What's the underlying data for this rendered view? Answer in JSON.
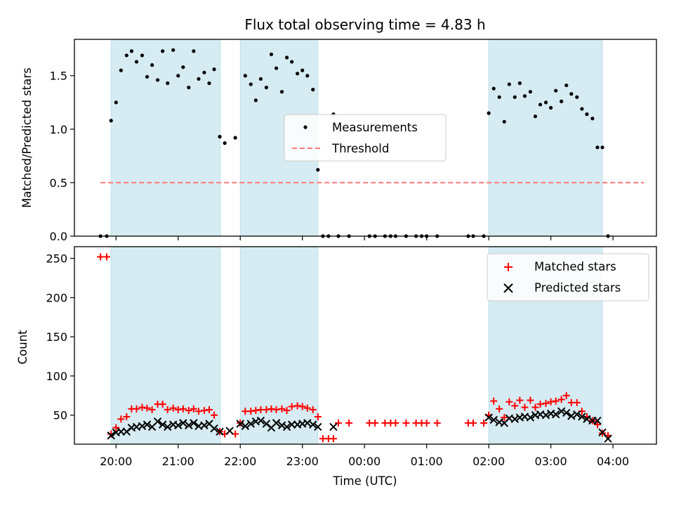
{
  "chart_data": [
    {
      "type": "scatter",
      "title": "Flux total observing time = 4.83 h",
      "xlabel": "",
      "ylabel": "Matched/Predicted stars",
      "xlim": [
        -0.67,
        8.7
      ],
      "ylim": [
        0,
        1.84
      ],
      "yticks": [
        0.0,
        0.5,
        1.0,
        1.5
      ],
      "ytick_labels": [
        "0.0",
        "0.5",
        "1.0",
        "1.5"
      ],
      "shaded_intervals": [
        [
          -0.08,
          1.68
        ],
        [
          2.0,
          3.25
        ],
        [
          6.0,
          7.83
        ]
      ],
      "threshold": {
        "name": "Threshold",
        "y": 0.5,
        "x_range": [
          -0.25,
          8.5
        ],
        "color": "#ff7b7b"
      },
      "series": [
        {
          "name": "Measurements",
          "color": "#000000",
          "x": [
            -0.25,
            -0.15,
            -0.08,
            0.0,
            0.08,
            0.17,
            0.25,
            0.33,
            0.42,
            0.5,
            0.58,
            0.67,
            0.75,
            0.83,
            0.92,
            1.0,
            1.08,
            1.17,
            1.25,
            1.33,
            1.42,
            1.5,
            1.58,
            1.67,
            1.75,
            1.92,
            2.08,
            2.17,
            2.25,
            2.33,
            2.42,
            2.5,
            2.58,
            2.67,
            2.75,
            2.83,
            2.92,
            3.0,
            3.08,
            3.17,
            3.25,
            3.33,
            3.42,
            3.5,
            3.58,
            3.75,
            4.08,
            4.17,
            4.33,
            4.42,
            4.5,
            4.67,
            4.83,
            4.92,
            5.0,
            5.17,
            5.67,
            5.75,
            5.92,
            6.0,
            6.08,
            6.17,
            6.25,
            6.33,
            6.42,
            6.5,
            6.58,
            6.67,
            6.75,
            6.83,
            6.92,
            7.0,
            7.08,
            7.17,
            7.25,
            7.33,
            7.42,
            7.5,
            7.58,
            7.67,
            7.75,
            7.83,
            7.92
          ],
          "y": [
            0.0,
            0.0,
            1.08,
            1.25,
            1.55,
            1.69,
            1.73,
            1.63,
            1.69,
            1.49,
            1.6,
            1.46,
            1.73,
            1.43,
            1.74,
            1.5,
            1.58,
            1.39,
            1.73,
            1.47,
            1.53,
            1.43,
            1.56,
            0.93,
            0.87,
            0.92,
            1.5,
            1.42,
            1.27,
            1.47,
            1.39,
            1.7,
            1.57,
            1.35,
            1.67,
            1.63,
            1.52,
            1.55,
            1.5,
            1.37,
            0.62,
            0.0,
            0.0,
            1.14,
            0.0,
            0.0,
            0.0,
            0.0,
            0.0,
            0.0,
            0.0,
            0.0,
            0.0,
            0.0,
            0.0,
            0.0,
            0.0,
            0.0,
            0.0,
            1.15,
            1.38,
            1.3,
            1.07,
            1.42,
            1.3,
            1.43,
            1.31,
            1.35,
            1.12,
            1.23,
            1.25,
            1.2,
            1.36,
            1.26,
            1.41,
            1.33,
            1.3,
            1.19,
            1.14,
            1.1,
            0.83,
            0.83,
            0.0
          ]
        }
      ],
      "legend": {
        "entries": [
          "Measurements",
          "Threshold"
        ],
        "placement": "center"
      },
      "grid": false
    },
    {
      "type": "scatter",
      "title": "",
      "xlabel": "Time (UTC)",
      "ylabel": "Count",
      "xlim": [
        -0.67,
        8.7
      ],
      "ylim": [
        13,
        265
      ],
      "yticks": [
        50,
        100,
        150,
        200,
        250
      ],
      "ytick_labels": [
        "50",
        "100",
        "150",
        "200",
        "250"
      ],
      "xticks": [
        0,
        1,
        2,
        3,
        4,
        5,
        6,
        7,
        8
      ],
      "xtick_labels": [
        "20:00",
        "21:00",
        "22:00",
        "23:00",
        "00:00",
        "01:00",
        "02:00",
        "03:00",
        "04:00"
      ],
      "shaded_intervals": [
        [
          -0.08,
          1.68
        ],
        [
          2.0,
          3.25
        ],
        [
          6.0,
          7.83
        ]
      ],
      "series": [
        {
          "name": "Matched stars",
          "marker": "+",
          "color": "#ff0000",
          "x": [
            -0.25,
            -0.15,
            -0.08,
            0.0,
            0.08,
            0.17,
            0.25,
            0.33,
            0.42,
            0.5,
            0.58,
            0.67,
            0.75,
            0.83,
            0.92,
            1.0,
            1.08,
            1.17,
            1.25,
            1.33,
            1.42,
            1.5,
            1.58,
            1.67,
            1.75,
            1.92,
            2.0,
            2.08,
            2.17,
            2.25,
            2.33,
            2.42,
            2.5,
            2.58,
            2.67,
            2.75,
            2.83,
            2.92,
            3.0,
            3.08,
            3.17,
            3.25,
            3.33,
            3.42,
            3.5,
            3.58,
            3.75,
            4.08,
            4.17,
            4.33,
            4.42,
            4.5,
            4.67,
            4.83,
            4.92,
            5.0,
            5.17,
            5.67,
            5.75,
            5.92,
            6.0,
            6.08,
            6.17,
            6.25,
            6.33,
            6.42,
            6.5,
            6.58,
            6.67,
            6.75,
            6.83,
            6.92,
            7.0,
            7.08,
            7.17,
            7.25,
            7.33,
            7.42,
            7.5,
            7.58,
            7.67,
            7.75,
            7.83,
            7.92
          ],
          "y": [
            252,
            252,
            26,
            34,
            45,
            48,
            58,
            58,
            60,
            59,
            57,
            64,
            64,
            57,
            59,
            57,
            58,
            56,
            58,
            55,
            56,
            57,
            50,
            29,
            26,
            26,
            40,
            55,
            55,
            56,
            57,
            57,
            58,
            57,
            58,
            56,
            61,
            62,
            61,
            59,
            57,
            48,
            20,
            20,
            20,
            40,
            40,
            40,
            40,
            40,
            40,
            40,
            40,
            40,
            40,
            40,
            40,
            40,
            40,
            40,
            50,
            68,
            58,
            47,
            67,
            62,
            69,
            60,
            69,
            60,
            64,
            65,
            67,
            68,
            70,
            75,
            66,
            66,
            55,
            48,
            43,
            38,
            27,
            24
          ]
        },
        {
          "name": "Predicted stars",
          "marker": "x",
          "color": "#000000",
          "x": [
            -0.08,
            0.0,
            0.08,
            0.17,
            0.25,
            0.33,
            0.42,
            0.5,
            0.58,
            0.67,
            0.75,
            0.83,
            0.92,
            1.0,
            1.08,
            1.17,
            1.25,
            1.33,
            1.42,
            1.5,
            1.58,
            1.67,
            1.83,
            2.0,
            2.08,
            2.17,
            2.25,
            2.33,
            2.42,
            2.5,
            2.58,
            2.67,
            2.75,
            2.83,
            2.92,
            3.0,
            3.08,
            3.17,
            3.25,
            3.5,
            6.0,
            6.08,
            6.17,
            6.25,
            6.33,
            6.42,
            6.5,
            6.58,
            6.67,
            6.75,
            6.83,
            6.92,
            7.0,
            7.08,
            7.17,
            7.25,
            7.33,
            7.42,
            7.5,
            7.58,
            7.67,
            7.75,
            7.83,
            7.92
          ],
          "y": [
            24,
            28,
            29,
            29,
            34,
            35,
            36,
            38,
            35,
            42,
            38,
            35,
            38,
            37,
            40,
            37,
            40,
            36,
            37,
            39,
            33,
            29,
            30,
            39,
            36,
            39,
            42,
            43,
            39,
            34,
            40,
            37,
            35,
            38,
            38,
            39,
            40,
            38,
            35,
            35,
            47,
            44,
            41,
            40,
            46,
            45,
            47,
            48,
            47,
            50,
            51,
            50,
            52,
            51,
            55,
            53,
            49,
            51,
            48,
            45,
            43,
            43,
            28,
            20
          ]
        }
      ],
      "legend": {
        "entries": [
          "Matched stars",
          "Predicted stars"
        ],
        "placement": "upper right"
      },
      "grid": false
    }
  ]
}
